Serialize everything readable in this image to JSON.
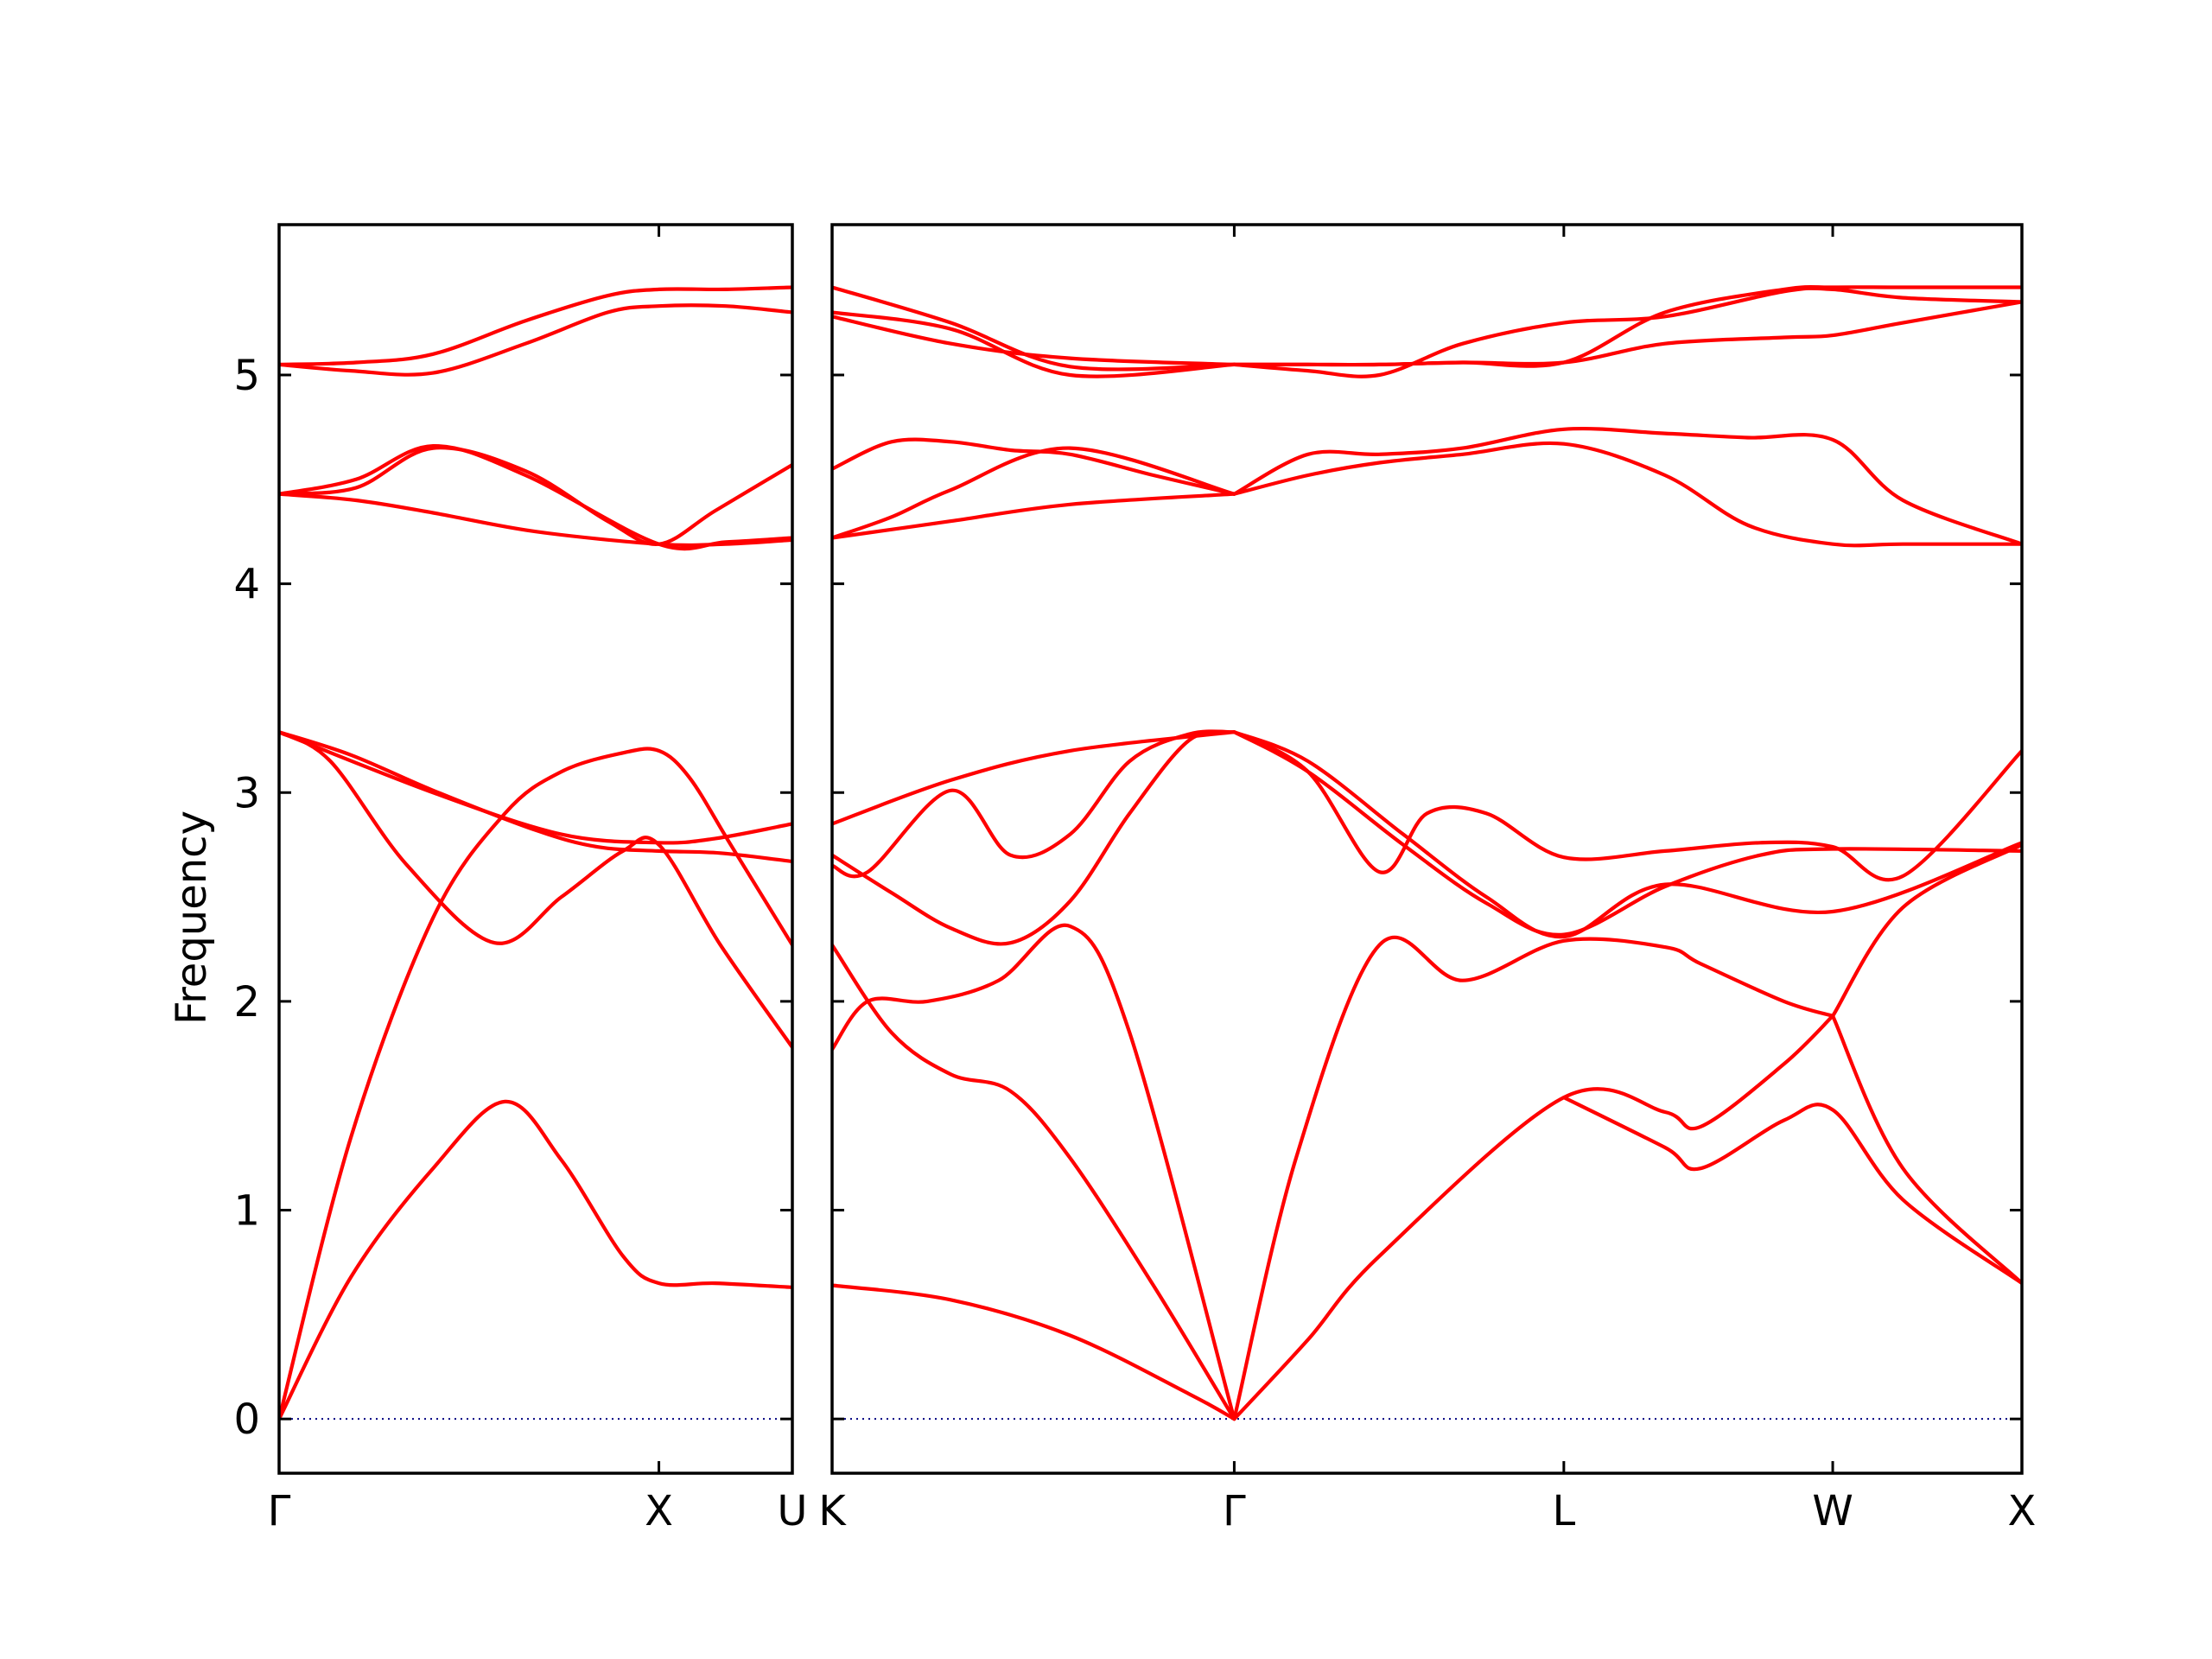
{
  "chart_data": {
    "type": "line",
    "title": "",
    "xlabel": "",
    "ylabel": "Frequency",
    "ylim": [
      -0.26,
      5.72
    ],
    "yticks": [
      0,
      1,
      2,
      3,
      4,
      5
    ],
    "grid": false,
    "legend": "none",
    "colors": {
      "band": "#ff0000",
      "zero_line": "#000080",
      "frame": "#000000"
    },
    "panels": [
      {
        "name": "Gamma-X-U",
        "xlim": [
          0,
          1.0
        ],
        "xticks": [
          {
            "x": 0,
            "label": "Γ"
          },
          {
            "x": 0.74,
            "label": "X"
          },
          {
            "x": 1.0,
            "label": "U"
          }
        ],
        "series": [
          {
            "x": [
              0,
              0.14,
              0.3,
              0.44,
              0.55,
              0.67,
              0.74,
              0.85,
              1.0
            ],
            "y": [
              0,
              0.68,
              1.2,
              1.52,
              1.24,
              0.78,
              0.65,
              0.65,
              0.63
            ]
          },
          {
            "x": [
              0,
              0.14,
              0.3,
              0.44,
              0.55,
              0.67,
              0.74,
              0.8,
              0.88,
              1.0
            ],
            "y": [
              0,
              1.35,
              2.4,
              2.9,
              3.1,
              3.19,
              3.2,
              3.07,
              2.75,
              2.27
            ]
          },
          {
            "x": [
              0,
              0.1,
              0.25,
              0.42,
              0.55,
              0.67,
              0.74,
              0.86,
              1.0
            ],
            "y": [
              3.29,
              3.15,
              2.65,
              2.28,
              2.5,
              2.72,
              2.75,
              2.27,
              1.78
            ]
          },
          {
            "x": [
              0,
              0.14,
              0.3,
              0.5,
              0.62,
              0.74,
              0.86,
              1.0
            ],
            "y": [
              3.29,
              3.18,
              3.01,
              2.82,
              2.74,
              2.72,
              2.71,
              2.67
            ]
          },
          {
            "x": [
              0,
              0.3,
              0.55,
              0.74,
              0.85,
              1.0
            ],
            "y": [
              3.29,
              3.0,
              2.8,
              2.76,
              2.78,
              2.85
            ]
          },
          {
            "x": [
              0,
              0.15,
              0.3,
              0.5,
              0.74,
              0.87,
              1.0
            ],
            "y": [
              4.43,
              4.4,
              4.34,
              4.25,
              4.19,
              4.19,
              4.21
            ]
          },
          {
            "x": [
              0,
              0.15,
              0.3,
              0.48,
              0.74,
              0.87,
              1.0
            ],
            "y": [
              4.43,
              4.5,
              4.66,
              4.52,
              4.19,
              4.2,
              4.22
            ]
          },
          {
            "x": [
              0,
              0.15,
              0.3,
              0.48,
              0.64,
              0.74,
              0.85,
              1.0
            ],
            "y": [
              4.43,
              4.46,
              4.65,
              4.54,
              4.3,
              4.19,
              4.35,
              4.57
            ]
          },
          {
            "x": [
              0,
              0.14,
              0.3,
              0.48,
              0.64,
              0.74,
              0.87,
              1.0
            ],
            "y": [
              5.05,
              5.02,
              5.01,
              5.15,
              5.3,
              5.33,
              5.33,
              5.3
            ]
          },
          {
            "x": [
              0,
              0.15,
              0.3,
              0.48,
              0.64,
              0.74,
              0.87,
              1.0
            ],
            "y": [
              5.05,
              5.06,
              5.1,
              5.26,
              5.38,
              5.41,
              5.41,
              5.42
            ]
          }
        ]
      },
      {
        "name": "K-Gamma-L-W-X",
        "xlim": [
          0,
          1.0
        ],
        "xticks": [
          {
            "x": 0,
            "label": "K"
          },
          {
            "x": 0.338,
            "label": "Γ"
          },
          {
            "x": 0.615,
            "label": "L"
          },
          {
            "x": 0.841,
            "label": "W"
          },
          {
            "x": 1.0,
            "label": "X"
          }
        ],
        "series": [
          {
            "x": [
              0,
              0.1,
              0.2,
              0.3,
              0.338
            ],
            "y": [
              0.64,
              0.57,
              0.4,
              0.12,
              0
            ]
          },
          {
            "x": [
              0,
              0.05,
              0.1,
              0.15,
              0.2,
              0.27,
              0.338
            ],
            "y": [
              2.27,
              1.85,
              1.65,
              1.57,
              1.25,
              0.64,
              0
            ]
          },
          {
            "x": [
              0,
              0.03,
              0.08,
              0.14,
              0.2,
              0.25,
              0.338
            ],
            "y": [
              1.77,
              2.0,
              2.0,
              2.1,
              2.36,
              1.85,
              0
            ]
          },
          {
            "x": [
              0.338,
              0.4,
              0.46,
              0.615,
              0.7,
              0.73,
              0.8,
              0.841
            ],
            "y": [
              0,
              0.38,
              0.78,
              1.54,
              1.47,
              1.4,
              1.7,
              1.93
            ]
          },
          {
            "x": [
              0.338,
              0.39,
              0.46,
              0.53,
              0.615,
              0.7,
              0.73,
              0.8,
              0.841
            ],
            "y": [
              0,
              1.25,
              2.27,
              2.1,
              2.29,
              2.26,
              2.18,
              2.0,
              1.93
            ]
          },
          {
            "x": [
              0.615,
              0.7,
              0.73,
              0.8,
              0.841,
              0.9,
              1.0
            ],
            "y": [
              1.54,
              1.3,
              1.2,
              1.43,
              1.48,
              1.05,
              0.65
            ]
          },
          {
            "x": [
              0.841,
              0.9,
              1.0
            ],
            "y": [
              1.93,
              1.2,
              0.65
            ]
          },
          {
            "x": [
              0.841,
              0.9,
              1.0
            ],
            "y": [
              1.93,
              2.45,
              2.75
            ]
          },
          {
            "x": [
              0,
              0.03,
              0.1,
              0.15,
              0.2,
              0.25,
              0.3,
              0.338
            ],
            "y": [
              2.65,
              2.62,
              3.01,
              2.7,
              2.8,
              3.15,
              3.28,
              3.29
            ]
          },
          {
            "x": [
              0,
              0.05,
              0.1,
              0.15,
              0.2,
              0.25,
              0.3,
              0.338
            ],
            "y": [
              2.7,
              2.52,
              2.35,
              2.28,
              2.48,
              2.9,
              3.25,
              3.29
            ]
          },
          {
            "x": [
              0,
              0.1,
              0.2,
              0.338
            ],
            "y": [
              2.85,
              3.06,
              3.2,
              3.29
            ]
          },
          {
            "x": [
              0.338,
              0.4,
              0.46,
              0.5,
              0.55,
              0.615,
              0.7,
              0.78,
              0.841,
              0.9,
              1.0
            ],
            "y": [
              3.29,
              3.1,
              2.62,
              2.9,
              2.9,
              2.69,
              2.72,
              2.76,
              2.74,
              2.6,
              3.2
            ]
          },
          {
            "x": [
              0.338,
              0.4,
              0.48,
              0.55,
              0.615,
              0.7,
              0.841,
              1.0
            ],
            "y": [
              3.29,
              3.15,
              2.8,
              2.5,
              2.31,
              2.56,
              2.43,
              2.76
            ]
          },
          {
            "x": [
              0.338,
              0.4,
              0.48,
              0.55,
              0.615,
              0.7,
              0.78,
              0.841,
              1.0
            ],
            "y": [
              3.29,
              3.1,
              2.75,
              2.47,
              2.32,
              2.55,
              2.7,
              2.73,
              2.72
            ]
          },
          {
            "x": [
              0,
              0.05,
              0.1,
              0.2,
              0.338
            ],
            "y": [
              4.22,
              4.26,
              4.3,
              4.38,
              4.43
            ]
          },
          {
            "x": [
              0,
              0.05,
              0.1,
              0.2,
              0.338
            ],
            "y": [
              4.22,
              4.32,
              4.45,
              4.65,
              4.43
            ]
          },
          {
            "x": [
              0,
              0.05,
              0.1,
              0.15,
              0.2,
              0.27,
              0.338
            ],
            "y": [
              4.55,
              4.68,
              4.68,
              4.64,
              4.62,
              4.52,
              4.43
            ]
          },
          {
            "x": [
              0.338,
              0.4,
              0.46,
              0.53,
              0.615,
              0.7,
              0.77,
              0.841,
              0.9,
              1.0
            ],
            "y": [
              4.43,
              4.52,
              4.58,
              4.62,
              4.67,
              4.52,
              4.28,
              4.19,
              4.19,
              4.19
            ]
          },
          {
            "x": [
              0.338,
              0.4,
              0.46,
              0.53,
              0.615,
              0.7,
              0.77,
              0.841,
              0.9,
              1.0
            ],
            "y": [
              4.43,
              4.62,
              4.62,
              4.65,
              4.74,
              4.72,
              4.7,
              4.69,
              4.4,
              4.19
            ]
          },
          {
            "x": [
              0,
              0.1,
              0.2,
              0.338
            ],
            "y": [
              5.42,
              5.25,
              5.04,
              5.05
            ]
          },
          {
            "x": [
              0,
              0.1,
              0.2,
              0.338
            ],
            "y": [
              5.3,
              5.22,
              5.0,
              5.05
            ]
          },
          {
            "x": [
              0,
              0.1,
              0.2,
              0.338
            ],
            "y": [
              5.28,
              5.15,
              5.08,
              5.05
            ]
          },
          {
            "x": [
              0.338,
              0.4,
              0.46,
              0.53,
              0.615,
              0.7,
              0.8,
              0.841,
              0.9,
              1.0
            ],
            "y": [
              5.05,
              5.02,
              5.0,
              5.15,
              5.25,
              5.28,
              5.4,
              5.41,
              5.37,
              5.35
            ]
          },
          {
            "x": [
              0.338,
              0.4,
              0.46,
              0.53,
              0.615,
              0.7,
              0.8,
              0.841,
              0.9,
              1.0
            ],
            "y": [
              5.05,
              5.05,
              5.05,
              5.06,
              5.06,
              5.3,
              5.41,
              5.42,
              5.42,
              5.42
            ]
          },
          {
            "x": [
              0.338,
              0.4,
              0.46,
              0.53,
              0.615,
              0.7,
              0.8,
              0.841,
              0.9,
              1.0
            ],
            "y": [
              5.05,
              5.05,
              5.05,
              5.06,
              5.06,
              5.15,
              5.18,
              5.19,
              5.25,
              5.35
            ]
          }
        ]
      }
    ]
  }
}
